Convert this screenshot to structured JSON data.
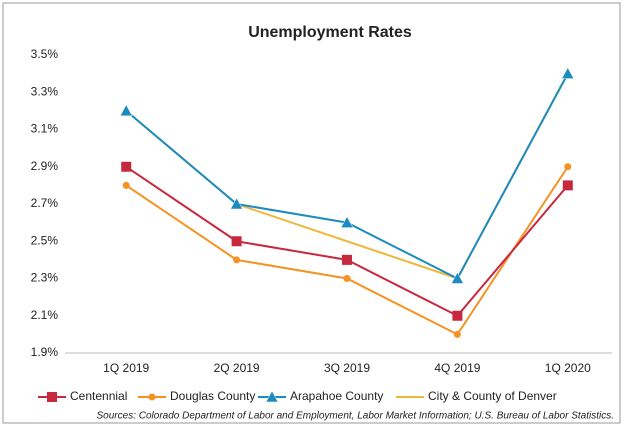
{
  "chart_data": {
    "type": "line",
    "title": "Unemployment Rates",
    "categories": [
      "1Q 2019",
      "2Q 2019",
      "3Q 2019",
      "4Q 2019",
      "1Q 2020"
    ],
    "series": [
      {
        "name": "Centennial",
        "color": "#c8283e",
        "marker": "square",
        "values": [
          2.9,
          2.5,
          2.4,
          2.1,
          2.8
        ]
      },
      {
        "name": "Douglas County",
        "color": "#f59222",
        "marker": "circle",
        "values": [
          2.8,
          2.4,
          2.3,
          2.0,
          2.9
        ]
      },
      {
        "name": "Arapahoe County",
        "color": "#1c8cc0",
        "marker": "triangle",
        "values": [
          3.2,
          2.7,
          2.6,
          2.3,
          3.4
        ]
      },
      {
        "name": "City & County of Denver",
        "color": "#f0b83a",
        "marker": "none",
        "values": [
          3.2,
          2.7,
          2.5,
          2.3,
          3.4
        ]
      }
    ],
    "ylim": [
      1.9,
      3.5
    ],
    "yticks": [
      {
        "value": 1.9,
        "label": "1.9%"
      },
      {
        "value": 2.1,
        "label": "2.1%"
      },
      {
        "value": 2.3,
        "label": "2.3%"
      },
      {
        "value": 2.5,
        "label": "2.5%"
      },
      {
        "value": 2.7,
        "label": "2.7%"
      },
      {
        "value": 2.9,
        "label": "2.9%"
      },
      {
        "value": 3.1,
        "label": "3.1%"
      },
      {
        "value": 3.3,
        "label": "3.3%"
      },
      {
        "value": 3.5,
        "label": "3.5%"
      }
    ],
    "grid": false,
    "source": "Sources: Colorado Department of Labor and Employment, Labor Market Information; U.S. Bureau of Labor Statistics."
  }
}
